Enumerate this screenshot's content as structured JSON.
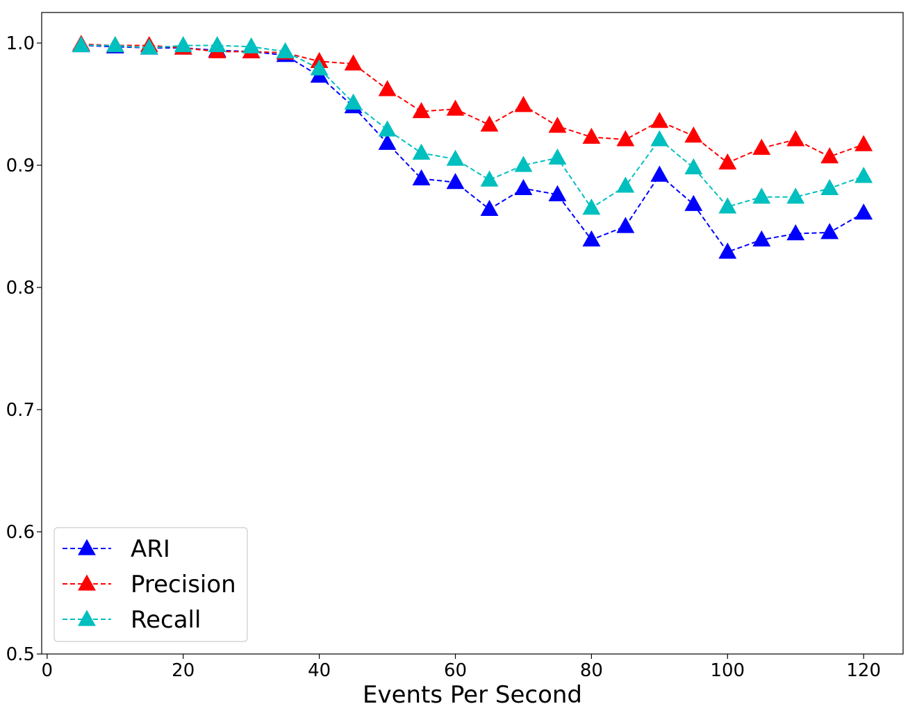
{
  "chart_data": {
    "type": "line",
    "title": "",
    "xlabel": "Events Per Second",
    "ylabel": "",
    "xlim": [
      -0.8,
      125.8
    ],
    "ylim": [
      0.5,
      1.025
    ],
    "xticks": [
      0,
      20,
      40,
      60,
      80,
      100,
      120
    ],
    "xtick_labels": [
      "0",
      "20",
      "40",
      "60",
      "80",
      "100",
      "120"
    ],
    "yticks": [
      0.5,
      0.6,
      0.7,
      0.8,
      0.9,
      1.0
    ],
    "ytick_labels": [
      "0.5",
      "0.6",
      "0.7",
      "0.8",
      "0.9",
      "1.0"
    ],
    "grid": false,
    "legend_position": "lower-left",
    "marker": "triangle-up",
    "line_style": "dashed",
    "x": [
      5,
      10,
      15,
      20,
      25,
      30,
      35,
      40,
      45,
      50,
      55,
      60,
      65,
      70,
      75,
      80,
      85,
      90,
      95,
      100,
      105,
      110,
      115,
      120
    ],
    "series": [
      {
        "name": "ARI",
        "color": "#0000ff",
        "values": [
          0.998,
          0.997,
          0.996,
          0.996,
          0.994,
          0.993,
          0.99,
          0.973,
          0.948,
          0.918,
          0.889,
          0.886,
          0.864,
          0.881,
          0.876,
          0.839,
          0.85,
          0.892,
          0.868,
          0.829,
          0.839,
          0.844,
          0.845,
          0.861
        ]
      },
      {
        "name": "Precision",
        "color": "#ff0000",
        "values": [
          0.999,
          0.998,
          0.998,
          0.996,
          0.993,
          0.993,
          0.992,
          0.985,
          0.983,
          0.962,
          0.944,
          0.946,
          0.933,
          0.949,
          0.932,
          0.923,
          0.921,
          0.936,
          0.924,
          0.902,
          0.914,
          0.921,
          0.907,
          0.917
        ]
      },
      {
        "name": "Recall",
        "color": "#00bfbf",
        "values": [
          0.998,
          0.998,
          0.996,
          0.998,
          0.998,
          0.997,
          0.993,
          0.979,
          0.951,
          0.929,
          0.91,
          0.905,
          0.888,
          0.9,
          0.906,
          0.865,
          0.883,
          0.921,
          0.898,
          0.866,
          0.874,
          0.874,
          0.881,
          0.891
        ]
      }
    ]
  }
}
